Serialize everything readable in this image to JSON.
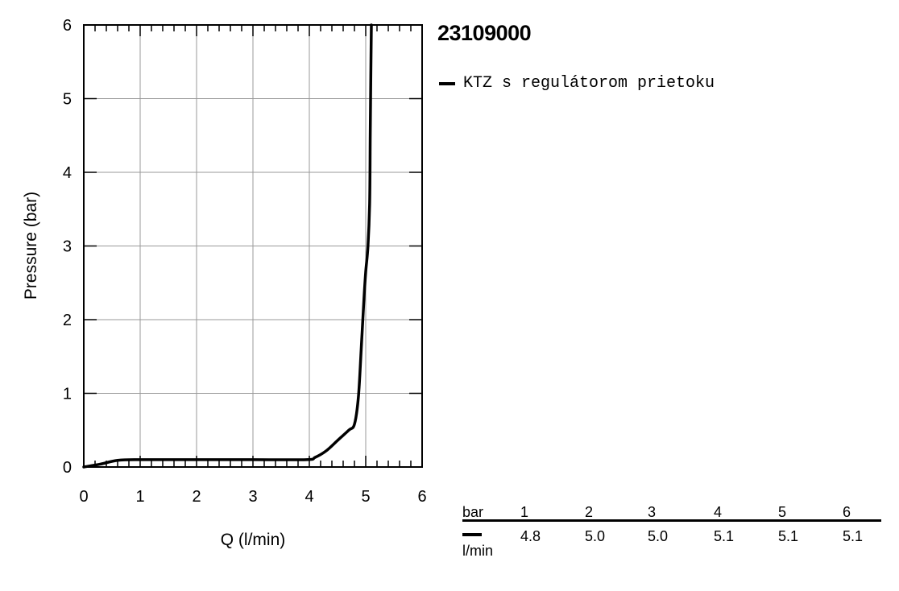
{
  "product_id": "23109000",
  "legend": {
    "label": "KTZ s regulátorom prietoku",
    "color": "#000000"
  },
  "chart_data": {
    "type": "line",
    "title": "",
    "xlabel": "Q (l/min)",
    "ylabel": "Pressure (bar)",
    "xlim": [
      0,
      6
    ],
    "ylim": [
      0,
      6
    ],
    "x_ticks": [
      "0",
      "1",
      "2",
      "3",
      "4",
      "5",
      "6"
    ],
    "y_ticks": [
      "0",
      "1",
      "2",
      "3",
      "4",
      "5",
      "6"
    ],
    "grid": true,
    "legend_position": "right",
    "series": [
      {
        "name": "KTZ s regulátorom prietoku",
        "color": "#000000",
        "points": [
          [
            0,
            0
          ],
          [
            0.3,
            0.04
          ],
          [
            0.6,
            0.09
          ],
          [
            1.0,
            0.1
          ],
          [
            2.0,
            0.1
          ],
          [
            3.0,
            0.1
          ],
          [
            3.95,
            0.1
          ],
          [
            4.1,
            0.13
          ],
          [
            4.3,
            0.22
          ],
          [
            4.5,
            0.36
          ],
          [
            4.7,
            0.5
          ],
          [
            4.8,
            0.58
          ],
          [
            4.87,
            0.95
          ],
          [
            4.92,
            1.6
          ],
          [
            4.97,
            2.3
          ],
          [
            5.0,
            2.65
          ],
          [
            5.04,
            3.0
          ],
          [
            5.07,
            3.6
          ],
          [
            5.08,
            4.5
          ],
          [
            5.09,
            5.3
          ],
          [
            5.1,
            6.0
          ]
        ]
      }
    ]
  },
  "flow_table": {
    "pressure_unit": "bar",
    "flow_unit": "l/min",
    "pressures": [
      "1",
      "2",
      "3",
      "4",
      "5",
      "6"
    ],
    "flows": [
      "4.8",
      "5.0",
      "5.0",
      "5.1",
      "5.1",
      "5.1"
    ]
  }
}
